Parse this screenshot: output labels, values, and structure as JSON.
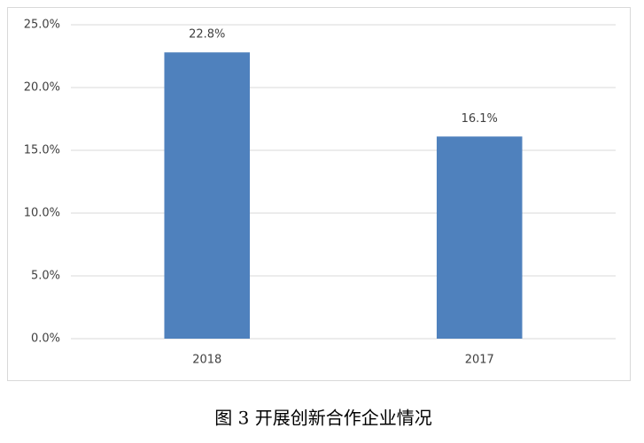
{
  "chart_data": {
    "type": "bar",
    "caption": "图 3  开展创新合作企业情况",
    "categories": [
      "2018",
      "2017"
    ],
    "values": [
      22.8,
      16.1
    ],
    "value_labels": [
      "22.8%",
      "16.1%"
    ],
    "color": "#4f81bd",
    "ylim": [
      0,
      25
    ],
    "yticks": [
      {
        "value": 0,
        "label": "0.0%"
      },
      {
        "value": 5,
        "label": "5.0%"
      },
      {
        "value": 10,
        "label": "10.0%"
      },
      {
        "value": 15,
        "label": "15.0%"
      },
      {
        "value": 20,
        "label": "20.0%"
      },
      {
        "value": 25,
        "label": "25.0%"
      }
    ],
    "grid": true
  }
}
